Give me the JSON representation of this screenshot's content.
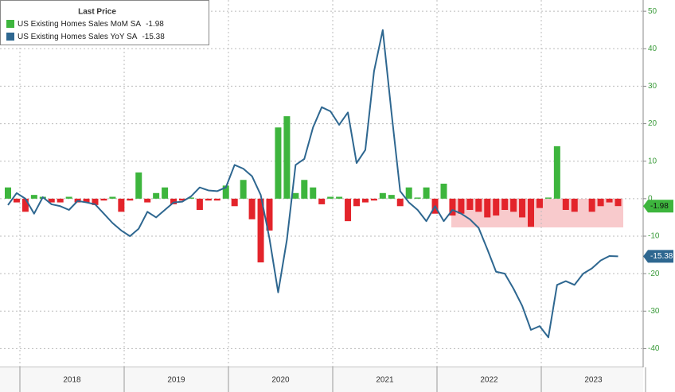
{
  "chart_data": {
    "type": "bar_line",
    "legend_title": "Last Price",
    "years": [
      "2018",
      "2019",
      "2020",
      "2021",
      "2022",
      "2023"
    ],
    "categories": [
      null,
      null,
      null,
      null,
      null,
      null,
      null,
      null,
      null,
      null,
      null,
      null,
      null,
      null,
      null,
      null,
      null,
      null,
      null,
      null,
      null,
      null,
      null,
      null,
      null,
      null,
      null,
      null,
      null,
      null,
      null,
      null,
      null,
      null,
      null,
      null,
      null,
      null,
      null,
      null,
      null,
      null,
      null,
      null,
      null,
      null,
      null,
      null,
      null,
      null,
      null,
      null,
      null,
      null,
      null,
      null,
      null,
      null,
      null,
      null,
      null,
      null,
      null,
      null,
      null,
      null,
      null,
      null,
      null,
      null,
      null
    ],
    "series": [
      {
        "name": "US Existing Homes Sales MoM SA",
        "type": "bar",
        "color": "#3db53d",
        "negative_color": "#e3242b",
        "values": [
          3,
          -1,
          -3.5,
          1,
          0.5,
          -1,
          -1,
          0.5,
          -1,
          -1,
          -1.7,
          -0.5,
          0.5,
          -3.5,
          -0.5,
          7,
          -1,
          1.5,
          3,
          -1.5,
          -0.5,
          0.3,
          -3,
          -0.5,
          -0.5,
          3.5,
          -2,
          5,
          -5.5,
          -17,
          -8.5,
          19,
          22,
          1.5,
          5,
          3,
          -1.5,
          0.5,
          0.5,
          -6,
          -2,
          -1,
          -0.5,
          1.5,
          1,
          -2,
          3,
          0.3,
          3,
          -4,
          4,
          -4.5,
          -4,
          -3,
          -3.5,
          -5,
          -4.5,
          -3,
          -3.5,
          -5,
          -7.5,
          -2.5,
          0.3,
          14,
          -3,
          -3.5,
          0,
          -3.5,
          -2,
          -1,
          -1.98
        ]
      },
      {
        "name": "US Existing Homes Sales YoY SA",
        "type": "line",
        "color": "#2e6790",
        "values": [
          -1.7,
          1.5,
          0,
          -4,
          0.4,
          -1.5,
          -2,
          -3,
          -0.6,
          -1,
          -1.5,
          -4,
          -6.5,
          -8.5,
          -10,
          -8,
          -3.5,
          -5,
          -3,
          -1,
          -0.8,
          0.6,
          3,
          2.2,
          2,
          3,
          9,
          8,
          6,
          1,
          -10.6,
          -25,
          -11,
          9,
          10.6,
          19,
          24.4,
          23.3,
          19.7,
          23,
          9.5,
          13,
          34,
          45,
          23,
          2,
          -1,
          -3,
          -6,
          -2,
          -6,
          -3,
          -4,
          -5.5,
          -7.8,
          -13.5,
          -19.5,
          -20,
          -24,
          -28.6,
          -35,
          -34,
          -37,
          -23,
          -22,
          -23,
          -20,
          -18.6,
          -16.5,
          -15.3,
          -15.38
        ]
      }
    ],
    "ylim": [
      -45,
      53
    ],
    "yticks": [
      -40,
      -30,
      -20,
      -10,
      0,
      10,
      20,
      30,
      40,
      50
    ],
    "grid": true
  }
}
